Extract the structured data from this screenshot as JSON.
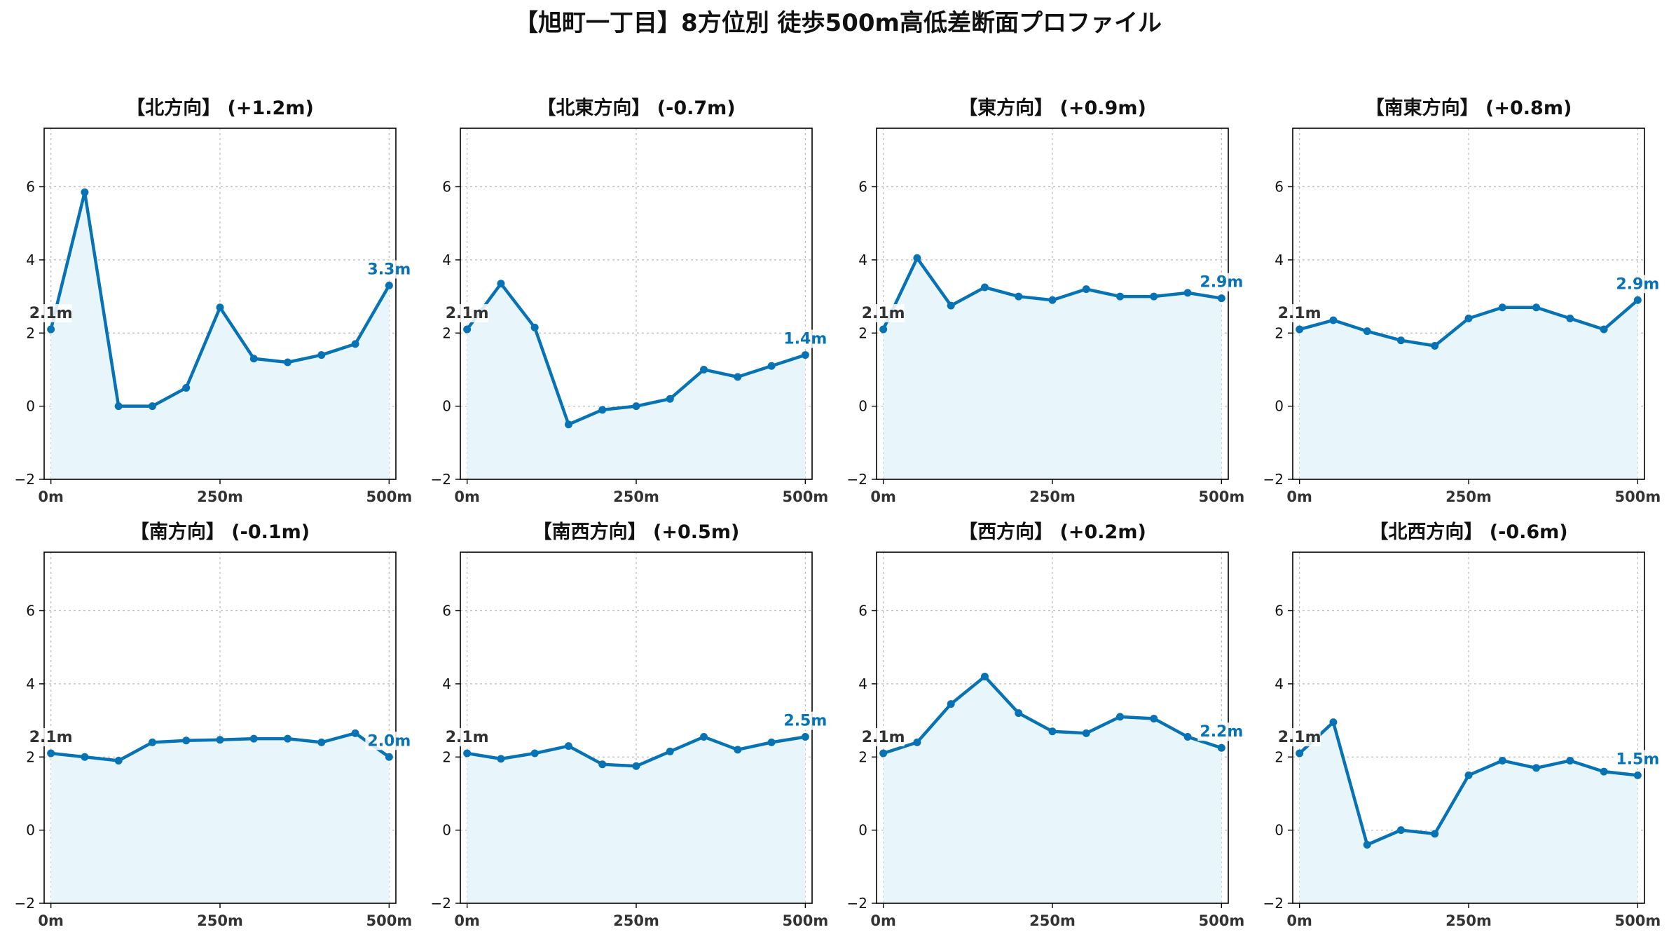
{
  "figure": {
    "title": "【旭町一丁目】8方位別 徒歩500m高低差断面プロファイル",
    "line_color": "#0773b5",
    "fill_color": "#e8f6fb",
    "start_label_color": "#333333",
    "grid": true
  },
  "chart_data": [
    {
      "type": "line",
      "title": "【北方向】 (+1.2m)",
      "x": [
        0,
        50,
        100,
        150,
        200,
        250,
        300,
        350,
        400,
        450,
        500
      ],
      "y": [
        2.1,
        5.85,
        0.0,
        0.0,
        0.5,
        2.7,
        1.3,
        1.2,
        1.4,
        1.7,
        3.3
      ],
      "start_label": "2.1m",
      "end_label": "3.3m",
      "xticks": [
        "0m",
        "250m",
        "500m"
      ],
      "yticks": [
        "−2",
        "0",
        "2",
        "4",
        "6"
      ],
      "xlim": [
        -10,
        510
      ],
      "ylim": [
        -2,
        7.6
      ]
    },
    {
      "type": "line",
      "title": "【北東方向】 (-0.7m)",
      "x": [
        0,
        50,
        100,
        150,
        200,
        250,
        300,
        350,
        400,
        450,
        500
      ],
      "y": [
        2.1,
        3.35,
        2.15,
        -0.5,
        -0.1,
        0.0,
        0.2,
        1.0,
        0.8,
        1.1,
        1.4
      ],
      "start_label": "2.1m",
      "end_label": "1.4m",
      "xticks": [
        "0m",
        "250m",
        "500m"
      ],
      "yticks": [
        "−2",
        "0",
        "2",
        "4",
        "6"
      ],
      "xlim": [
        -10,
        510
      ],
      "ylim": [
        -2,
        7.6
      ]
    },
    {
      "type": "line",
      "title": "【東方向】 (+0.9m)",
      "x": [
        0,
        50,
        100,
        150,
        200,
        250,
        300,
        350,
        400,
        450,
        500
      ],
      "y": [
        2.1,
        4.05,
        2.75,
        3.25,
        3.0,
        2.9,
        3.2,
        3.0,
        3.0,
        3.1,
        2.95
      ],
      "start_label": "2.1m",
      "end_label": "2.9m",
      "xticks": [
        "0m",
        "250m",
        "500m"
      ],
      "yticks": [
        "−2",
        "0",
        "2",
        "4",
        "6"
      ],
      "xlim": [
        -10,
        510
      ],
      "ylim": [
        -2,
        7.6
      ]
    },
    {
      "type": "line",
      "title": "【南東方向】 (+0.8m)",
      "x": [
        0,
        50,
        100,
        150,
        200,
        250,
        300,
        350,
        400,
        450,
        500
      ],
      "y": [
        2.1,
        2.35,
        2.05,
        1.8,
        1.65,
        2.4,
        2.7,
        2.7,
        2.4,
        2.1,
        2.9
      ],
      "start_label": "2.1m",
      "end_label": "2.9m",
      "xticks": [
        "0m",
        "250m",
        "500m"
      ],
      "yticks": [
        "−2",
        "0",
        "2",
        "4",
        "6"
      ],
      "xlim": [
        -10,
        510
      ],
      "ylim": [
        -2,
        7.6
      ]
    },
    {
      "type": "line",
      "title": "【南方向】 (-0.1m)",
      "x": [
        0,
        50,
        100,
        150,
        200,
        250,
        300,
        350,
        400,
        450,
        500
      ],
      "y": [
        2.1,
        2.0,
        1.9,
        2.4,
        2.45,
        2.47,
        2.5,
        2.5,
        2.4,
        2.65,
        2.0
      ],
      "start_label": "2.1m",
      "end_label": "2.0m",
      "xticks": [
        "0m",
        "250m",
        "500m"
      ],
      "yticks": [
        "−2",
        "0",
        "2",
        "4",
        "6"
      ],
      "xlim": [
        -10,
        510
      ],
      "ylim": [
        -2,
        7.6
      ]
    },
    {
      "type": "line",
      "title": "【南西方向】 (+0.5m)",
      "x": [
        0,
        50,
        100,
        150,
        200,
        250,
        300,
        350,
        400,
        450,
        500
      ],
      "y": [
        2.1,
        1.95,
        2.1,
        2.3,
        1.8,
        1.75,
        2.15,
        2.55,
        2.2,
        2.4,
        2.55
      ],
      "start_label": "2.1m",
      "end_label": "2.5m",
      "xticks": [
        "0m",
        "250m",
        "500m"
      ],
      "yticks": [
        "−2",
        "0",
        "2",
        "4",
        "6"
      ],
      "xlim": [
        -10,
        510
      ],
      "ylim": [
        -2,
        7.6
      ]
    },
    {
      "type": "line",
      "title": "【西方向】 (+0.2m)",
      "x": [
        0,
        50,
        100,
        150,
        200,
        250,
        300,
        350,
        400,
        450,
        500
      ],
      "y": [
        2.1,
        2.4,
        3.45,
        4.2,
        3.2,
        2.7,
        2.65,
        3.1,
        3.05,
        2.55,
        2.25
      ],
      "start_label": "2.1m",
      "end_label": "2.2m",
      "xticks": [
        "0m",
        "250m",
        "500m"
      ],
      "yticks": [
        "−2",
        "0",
        "2",
        "4",
        "6"
      ],
      "xlim": [
        -10,
        510
      ],
      "ylim": [
        -2,
        7.6
      ]
    },
    {
      "type": "line",
      "title": "【北西方向】 (-0.6m)",
      "x": [
        0,
        50,
        100,
        150,
        200,
        250,
        300,
        350,
        400,
        450,
        500
      ],
      "y": [
        2.1,
        2.95,
        -0.4,
        0.0,
        -0.1,
        1.5,
        1.9,
        1.7,
        1.9,
        1.6,
        1.5
      ],
      "start_label": "2.1m",
      "end_label": "1.5m",
      "xticks": [
        "0m",
        "250m",
        "500m"
      ],
      "yticks": [
        "−2",
        "0",
        "2",
        "4",
        "6"
      ],
      "xlim": [
        -10,
        510
      ],
      "ylim": [
        -2,
        7.6
      ]
    }
  ]
}
